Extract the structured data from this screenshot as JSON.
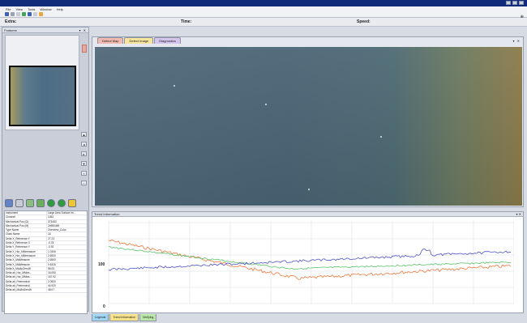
{
  "menu": [
    "File",
    "View",
    "Tools",
    "Window",
    "Help"
  ],
  "status": {
    "left": "Extra:",
    "time": "Time:",
    "speed": "Speed:"
  },
  "left_panel": {
    "title": "Features"
  },
  "properties": [
    [
      "Instrument",
      "Large Area Surface Im..."
    ],
    [
      "Channel",
      "1053"
    ],
    [
      "Mechanical Pos (Ω)",
      "373483"
    ],
    [
      "Mechanical Pos (M)",
      "24980469"
    ],
    [
      "Type Name",
      "Overview_Color"
    ],
    [
      "Class Name",
      "16"
    ],
    [
      "Delta X_Reference Y",
      "27.23"
    ],
    [
      "Delta X_Reference X",
      "-0.78"
    ],
    [
      "Delta Y_Reference Y",
      "-0.92"
    ],
    [
      "Delta X_Hor_MMmeasure",
      "1.0306"
    ],
    [
      "Delta X_Hor_MMmeasure",
      "2.6500"
    ],
    [
      "Delta X_MidMeasure",
      "2.6500"
    ],
    [
      "Delta X_MidMeasure",
      "0.6326"
    ],
    [
      "Delta X_MidAnZeroW",
      "58.05"
    ],
    [
      "Delta alt_Hor_MMea...",
      "16.050"
    ],
    [
      "Delta alt_Hor_MMea...",
      "167.92"
    ],
    [
      "Delta alt_Pretermindl",
      "2.0500"
    ],
    [
      "Delta alt_Pretermindl",
      "44.920"
    ],
    [
      "Delta alt_MidAnZeroW",
      "48.07"
    ]
  ],
  "tabs": [
    {
      "label": "Defect Map",
      "color": "#f2b9b0"
    },
    {
      "label": "Defect Image",
      "color": "#f5e59a"
    },
    {
      "label": "Diagnostics",
      "color": "#d4c4ee"
    }
  ],
  "bottom_panel": {
    "title": "Trend Information",
    "y_label": "100",
    "x_label": "0"
  },
  "bottom_tabs": [
    {
      "label": "Legends",
      "color": "#9fd6f3"
    },
    {
      "label": "Trend Information",
      "color": "#f6e28a"
    },
    {
      "label": "Verifying",
      "color": "#b9e6a8"
    }
  ],
  "colors": {
    "series_orange": "#ef7a3c",
    "series_green": "#5ec26c",
    "series_blue": "#4e52c8"
  }
}
